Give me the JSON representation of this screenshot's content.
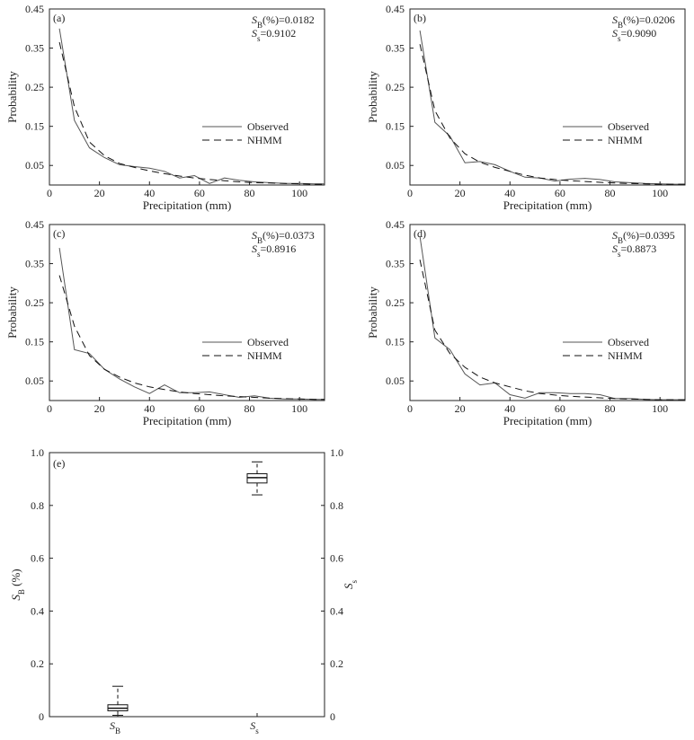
{
  "figure": {
    "colors": {
      "axis": "#222222",
      "observed": "#555555",
      "nhmm": "#111111",
      "box": "#111111"
    },
    "legend": {
      "observed": "Observed",
      "nhmm": "NHMM"
    }
  },
  "chart_data": [
    {
      "type": "line",
      "label": "(a)",
      "stat_sb": "(%)=0.0182",
      "stat_ss": "=0.9102",
      "xlabel": "Precipitation (mm)",
      "ylabel": "Probability",
      "xlim": [
        0,
        110
      ],
      "ylim": [
        0,
        0.45
      ],
      "xticks": [
        0,
        20,
        40,
        60,
        80,
        100
      ],
      "yticks": [
        0.05,
        0.15,
        0.25,
        0.35,
        0.45
      ],
      "legend_position": "right-middle",
      "series": [
        {
          "name": "Observed",
          "x": [
            4,
            10,
            16,
            22,
            28,
            34,
            40,
            46,
            52,
            58,
            64,
            70,
            76,
            82,
            88,
            94,
            100,
            106,
            110
          ],
          "values": [
            0.4,
            0.165,
            0.095,
            0.07,
            0.052,
            0.047,
            0.043,
            0.035,
            0.018,
            0.024,
            0.004,
            0.018,
            0.012,
            0.008,
            0.006,
            0.004,
            0.004,
            0.003,
            0.003
          ]
        },
        {
          "name": "NHMM",
          "x": [
            4,
            10,
            16,
            22,
            28,
            34,
            40,
            46,
            52,
            58,
            64,
            70,
            76,
            82,
            88,
            94,
            100,
            106,
            110
          ],
          "values": [
            0.365,
            0.2,
            0.11,
            0.075,
            0.055,
            0.045,
            0.036,
            0.029,
            0.023,
            0.018,
            0.014,
            0.011,
            0.008,
            0.006,
            0.005,
            0.004,
            0.003,
            0.002,
            0.002
          ]
        }
      ]
    },
    {
      "type": "line",
      "label": "(b)",
      "stat_sb": "(%)=0.0206",
      "stat_ss": "=0.9090",
      "xlabel": "Precipitation (mm)",
      "ylabel": "Probability",
      "xlim": [
        0,
        110
      ],
      "ylim": [
        0,
        0.45
      ],
      "xticks": [
        0,
        20,
        40,
        60,
        80,
        100
      ],
      "yticks": [
        0.05,
        0.15,
        0.25,
        0.35,
        0.45
      ],
      "legend_position": "right-middle",
      "series": [
        {
          "name": "Observed",
          "x": [
            4,
            10,
            16,
            22,
            28,
            34,
            40,
            46,
            52,
            58,
            64,
            70,
            76,
            82,
            88,
            94,
            100,
            106,
            110
          ],
          "values": [
            0.395,
            0.16,
            0.125,
            0.057,
            0.06,
            0.052,
            0.035,
            0.02,
            0.018,
            0.01,
            0.015,
            0.017,
            0.014,
            0.008,
            0.006,
            0.004,
            0.003,
            0.002,
            0.002
          ]
        },
        {
          "name": "NHMM",
          "x": [
            4,
            10,
            16,
            22,
            28,
            34,
            40,
            46,
            52,
            58,
            64,
            70,
            76,
            82,
            88,
            94,
            100,
            106,
            110
          ],
          "values": [
            0.36,
            0.19,
            0.12,
            0.08,
            0.058,
            0.045,
            0.035,
            0.025,
            0.018,
            0.014,
            0.011,
            0.009,
            0.007,
            0.005,
            0.004,
            0.003,
            0.002,
            0.002,
            0.002
          ]
        }
      ]
    },
    {
      "type": "line",
      "label": "(c)",
      "stat_sb": "(%)=0.0373",
      "stat_ss": "=0.8916",
      "xlabel": "Precipitation (mm)",
      "ylabel": "Probability",
      "xlim": [
        0,
        110
      ],
      "ylim": [
        0,
        0.45
      ],
      "xticks": [
        0,
        20,
        40,
        60,
        80,
        100
      ],
      "yticks": [
        0.05,
        0.15,
        0.25,
        0.35,
        0.45
      ],
      "legend_position": "right-middle",
      "series": [
        {
          "name": "Observed",
          "x": [
            4,
            10,
            16,
            22,
            28,
            34,
            40,
            46,
            52,
            58,
            64,
            70,
            76,
            82,
            88,
            94,
            100,
            106,
            110
          ],
          "values": [
            0.39,
            0.13,
            0.12,
            0.08,
            0.055,
            0.035,
            0.018,
            0.04,
            0.02,
            0.02,
            0.022,
            0.015,
            0.008,
            0.012,
            0.006,
            0.004,
            0.004,
            0.003,
            0.003
          ]
        },
        {
          "name": "NHMM",
          "x": [
            4,
            10,
            16,
            22,
            28,
            34,
            40,
            46,
            52,
            58,
            64,
            70,
            76,
            82,
            88,
            94,
            100,
            106,
            110
          ],
          "values": [
            0.32,
            0.19,
            0.115,
            0.08,
            0.06,
            0.045,
            0.035,
            0.028,
            0.022,
            0.018,
            0.015,
            0.012,
            0.01,
            0.008,
            0.006,
            0.005,
            0.004,
            0.003,
            0.003
          ]
        }
      ]
    },
    {
      "type": "line",
      "label": "(d)",
      "stat_sb": "(%)=0.0395",
      "stat_ss": "=0.8873",
      "xlabel": "Precipitation (mm)",
      "ylabel": "Probability",
      "xlim": [
        0,
        110
      ],
      "ylim": [
        0,
        0.45
      ],
      "xticks": [
        0,
        20,
        40,
        60,
        80,
        100
      ],
      "yticks": [
        0.05,
        0.15,
        0.25,
        0.35,
        0.45
      ],
      "legend_position": "right-middle",
      "series": [
        {
          "name": "Observed",
          "x": [
            4,
            10,
            16,
            22,
            28,
            34,
            40,
            46,
            52,
            58,
            64,
            70,
            76,
            82,
            88,
            94,
            100,
            106,
            110
          ],
          "values": [
            0.42,
            0.16,
            0.13,
            0.068,
            0.04,
            0.045,
            0.015,
            0.006,
            0.02,
            0.02,
            0.018,
            0.018,
            0.015,
            0.005,
            0.005,
            0.003,
            0.002,
            0.002,
            0.002
          ]
        },
        {
          "name": "NHMM",
          "x": [
            4,
            10,
            16,
            22,
            28,
            34,
            40,
            46,
            52,
            58,
            64,
            70,
            76,
            82,
            88,
            94,
            100,
            106,
            110
          ],
          "values": [
            0.36,
            0.18,
            0.12,
            0.085,
            0.06,
            0.045,
            0.035,
            0.025,
            0.018,
            0.014,
            0.011,
            0.009,
            0.007,
            0.005,
            0.004,
            0.003,
            0.002,
            0.002,
            0.002
          ]
        }
      ]
    },
    {
      "type": "box",
      "label": "(e)",
      "categories": [
        "S",
        "S"
      ],
      "category_subscripts": [
        "B",
        "s"
      ],
      "ylabel_left": "S",
      "ylabel_left_sub": "B",
      "ylabel_left_suffix": " (%)",
      "ylabel_right": "S",
      "ylabel_right_sub": "s",
      "ylim": [
        0,
        1.0
      ],
      "yticks": [
        0,
        0.2,
        0.4,
        0.6,
        0.8,
        1.0
      ],
      "ytick_labels": [
        "0",
        "0.2",
        "0.4",
        "0.6",
        "0.8",
        "1.0"
      ],
      "boxes": [
        {
          "name": "SB",
          "min": 0.005,
          "q1": 0.022,
          "median": 0.032,
          "q3": 0.045,
          "max": 0.115
        },
        {
          "name": "Ss",
          "min": 0.84,
          "q1": 0.885,
          "median": 0.905,
          "q3": 0.92,
          "max": 0.965
        }
      ]
    }
  ]
}
